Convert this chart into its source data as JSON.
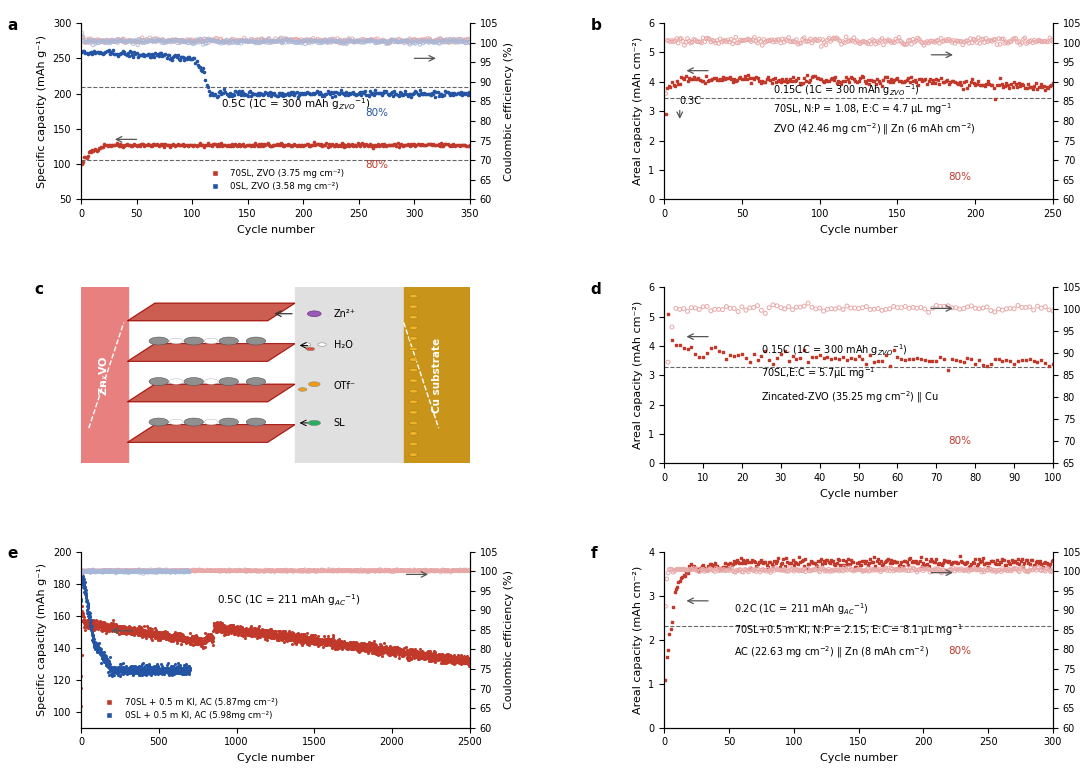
{
  "colors": {
    "red": "#c0392b",
    "blue": "#2454a4",
    "light_red_ce": "#e8a8a8",
    "light_blue_ce": "#a8b8d8",
    "pink_left": "#e88080",
    "gold_right": "#c8941a"
  },
  "panel_a": {
    "xlim": [
      0,
      350
    ],
    "ylim_left": [
      50,
      300
    ],
    "ylim_right": [
      60,
      105
    ],
    "xticks": [
      0,
      50,
      100,
      150,
      200,
      250,
      300,
      350
    ],
    "yticks_left": [
      50,
      100,
      150,
      200,
      250,
      300
    ],
    "yticks_right": [
      60,
      65,
      70,
      75,
      80,
      85,
      90,
      95,
      100,
      105
    ],
    "hlines": [
      105,
      210
    ],
    "annotation": "0.5C (1C = 300 mAh g$_{ZVO}$$^{-1}$)",
    "ann_x": 0.36,
    "ann_y": 0.52,
    "blue80_x": 0.73,
    "blue80_y": 0.47,
    "red80_x": 0.73,
    "red80_y": 0.18
  },
  "panel_b": {
    "xlim": [
      0,
      250
    ],
    "ylim_left": [
      0,
      6
    ],
    "ylim_right": [
      60,
      105
    ],
    "xticks": [
      0,
      50,
      100,
      150,
      200,
      250
    ],
    "yticks_left": [
      0,
      1,
      2,
      3,
      4,
      5,
      6
    ],
    "yticks_right": [
      60,
      65,
      70,
      75,
      80,
      85,
      90,
      95,
      100,
      105
    ],
    "hline": 3.45,
    "ann1": "0.15C (1C = 300 mAh g$_{ZVO}$$^{-1}$)",
    "ann2": "70SL, N:P = 1.08, E:C = 4.7 μL mg$^{-1}$",
    "ann3": "ZVO (42.46 mg cm$^{-2}$) ‖ Zn (6 mAh cm$^{-2}$)",
    "ann_x": 0.28,
    "ann_y": 0.6,
    "red80_x": 0.73,
    "red80_y": 0.11
  },
  "panel_d": {
    "xlim": [
      0,
      100
    ],
    "ylim_left": [
      0,
      6
    ],
    "ylim_right": [
      65,
      105
    ],
    "xticks": [
      0,
      10,
      20,
      30,
      40,
      50,
      60,
      70,
      80,
      90,
      100
    ],
    "yticks_left": [
      0,
      1,
      2,
      3,
      4,
      5,
      6
    ],
    "yticks_right": [
      65,
      70,
      75,
      80,
      85,
      90,
      95,
      100,
      105
    ],
    "hline": 3.3,
    "ann1": "0.15C (1C = 300 mAh g$_{ZVO}$$^{-1}$)",
    "ann2": "70SL,E:C = 5.7μL mg$^{-1}$",
    "ann3": "Zincated-ZVO (35.25 mg cm$^{-2}$) ‖ Cu",
    "ann_x": 0.25,
    "ann_y": 0.62,
    "red80_x": 0.73,
    "red80_y": 0.11
  },
  "panel_e": {
    "xlim": [
      0,
      2500
    ],
    "ylim_left": [
      90,
      200
    ],
    "ylim_right": [
      60,
      105
    ],
    "xticks": [
      0,
      500,
      1000,
      1500,
      2000,
      2500
    ],
    "yticks_left": [
      100,
      120,
      140,
      160,
      180,
      200
    ],
    "yticks_right": [
      60,
      65,
      70,
      75,
      80,
      85,
      90,
      95,
      100,
      105
    ],
    "annotation": "0.5C (1C = 211 mAh g$_{AC}$$^{-1}$)",
    "ann_x": 0.35,
    "ann_y": 0.7
  },
  "panel_f": {
    "xlim": [
      0,
      300
    ],
    "ylim_left": [
      0,
      4
    ],
    "ylim_right": [
      60,
      105
    ],
    "xticks": [
      0,
      50,
      100,
      150,
      200,
      250,
      300
    ],
    "yticks_left": [
      0,
      1,
      2,
      3,
      4
    ],
    "yticks_right": [
      60,
      65,
      70,
      75,
      80,
      85,
      90,
      95,
      100,
      105
    ],
    "hline": 2.3,
    "ann1": "0.2C (1C = 211 mAh g$_{AC}$$^{-1}$)",
    "ann2": "70SL+0.5 m KI, N:P = 2.15, E:C = 8.1 μL mg$^{-1}$",
    "ann3": "AC (22.63 mg cm$^{-2}$) ‖ Zn (8 mAh cm$^{-2}$)",
    "ann_x": 0.18,
    "ann_y": 0.65,
    "red80_x": 0.73,
    "red80_y": 0.42
  }
}
